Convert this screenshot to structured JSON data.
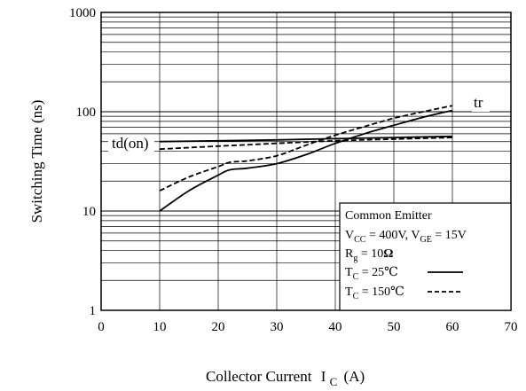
{
  "chart_data": {
    "type": "line",
    "title": "",
    "xlabel": "Collector Current",
    "xlabel_symbol": "I",
    "xlabel_sub": "C",
    "xlabel_unit": "(A)",
    "ylabel": "Switching Time  (ns)",
    "xlim": [
      0,
      70
    ],
    "ylim": [
      1,
      1000
    ],
    "y_scale": "log",
    "grid": true,
    "x_ticks": [
      "0",
      "10",
      "20",
      "30",
      "40",
      "50",
      "60",
      "70"
    ],
    "y_ticks": [
      "1",
      "10",
      "100",
      "1000"
    ],
    "legend_position": "bottom-right",
    "legend": {
      "line1": "Common Emitter",
      "line2": {
        "v1": "V",
        "s1": "CC",
        "t1": " = 400V, V",
        "s2": "GE",
        "t2": " = 15V"
      },
      "line3": {
        "v": "R",
        "s": "g",
        "t": " = 10",
        "omega": "Ω"
      },
      "line4": {
        "v": "T",
        "s": "C",
        "t": " = 25℃"
      },
      "line5": {
        "v": "T",
        "s": "C",
        "t": " = 150℃"
      }
    },
    "curve_labels": [
      "tr",
      "td(on)"
    ],
    "series": [
      {
        "name": "tr",
        "condition": "TC = 25℃",
        "style": "solid",
        "x": [
          10,
          15,
          20,
          22,
          25,
          30,
          35,
          40,
          45,
          50,
          55,
          60
        ],
        "y": [
          10,
          16,
          23,
          26,
          27,
          30,
          37,
          48,
          60,
          73,
          88,
          103
        ]
      },
      {
        "name": "tr",
        "condition": "TC = 150℃",
        "style": "dashed",
        "x": [
          10,
          15,
          20,
          22,
          25,
          30,
          35,
          40,
          45,
          50,
          55,
          60
        ],
        "y": [
          16,
          22,
          28,
          31,
          32,
          36,
          46,
          58,
          71,
          86,
          100,
          115
        ]
      },
      {
        "name": "td(on)",
        "condition": "TC = 25℃",
        "style": "solid",
        "x": [
          10,
          20,
          30,
          40,
          50,
          60
        ],
        "y": [
          50,
          51,
          52,
          53.5,
          55,
          56.5
        ]
      },
      {
        "name": "td(on)",
        "condition": "TC = 150℃",
        "style": "dashed",
        "x": [
          10,
          20,
          30,
          40,
          50,
          60
        ],
        "y": [
          42,
          45,
          48,
          51,
          53,
          55
        ]
      }
    ]
  }
}
